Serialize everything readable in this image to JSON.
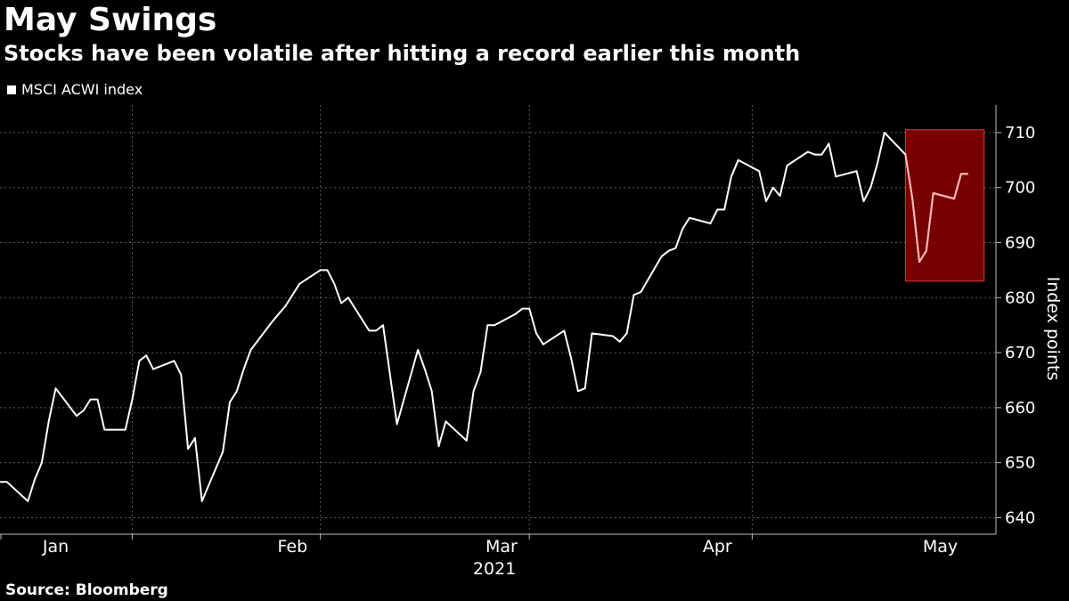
{
  "title": "May Swings",
  "subtitle": "Stocks have been volatile after hitting a record earlier this month",
  "source": "Source: Bloomberg",
  "chart_data": {
    "type": "line",
    "title": "May Swings",
    "subtitle": "Stocks have been volatile after hitting a record earlier this month",
    "ylabel": "Index points",
    "year_label": "2021",
    "ylim": [
      637,
      715
    ],
    "yticks": [
      640,
      650,
      660,
      670,
      680,
      690,
      700,
      710
    ],
    "month_labels": [
      "Jan",
      "Feb",
      "Mar",
      "Apr",
      "May"
    ],
    "grid": true,
    "legend_position": "top-left",
    "series": [
      {
        "name": "MSCI ACWI index",
        "color": "#ffffff",
        "x": [
          "2020-12-31",
          "2021-01-01",
          "2021-01-04",
          "2021-01-05",
          "2021-01-06",
          "2021-01-07",
          "2021-01-08",
          "2021-01-11",
          "2021-01-12",
          "2021-01-13",
          "2021-01-14",
          "2021-01-15",
          "2021-01-18",
          "2021-01-19",
          "2021-01-20",
          "2021-01-21",
          "2021-01-22",
          "2021-01-25",
          "2021-01-26",
          "2021-01-27",
          "2021-01-28",
          "2021-01-29",
          "2021-02-01",
          "2021-02-02",
          "2021-02-03",
          "2021-02-04",
          "2021-02-05",
          "2021-02-08",
          "2021-02-09",
          "2021-02-10",
          "2021-02-11",
          "2021-02-12",
          "2021-02-15",
          "2021-02-16",
          "2021-02-17",
          "2021-02-18",
          "2021-02-19",
          "2021-02-22",
          "2021-02-23",
          "2021-02-24",
          "2021-02-25",
          "2021-02-26",
          "2021-03-01",
          "2021-03-02",
          "2021-03-03",
          "2021-03-04",
          "2021-03-05",
          "2021-03-08",
          "2021-03-09",
          "2021-03-10",
          "2021-03-11",
          "2021-03-12",
          "2021-03-15",
          "2021-03-16",
          "2021-03-17",
          "2021-03-18",
          "2021-03-19",
          "2021-03-22",
          "2021-03-23",
          "2021-03-24",
          "2021-03-25",
          "2021-03-26",
          "2021-03-29",
          "2021-03-30",
          "2021-03-31",
          "2021-04-01",
          "2021-04-02",
          "2021-04-05",
          "2021-04-06",
          "2021-04-07",
          "2021-04-08",
          "2021-04-09",
          "2021-04-12",
          "2021-04-13",
          "2021-04-14",
          "2021-04-15",
          "2021-04-16",
          "2021-04-19",
          "2021-04-20",
          "2021-04-21",
          "2021-04-22",
          "2021-04-23",
          "2021-04-26",
          "2021-04-27",
          "2021-04-28",
          "2021-04-29",
          "2021-04-30",
          "2021-05-03",
          "2021-05-04",
          "2021-05-05",
          "2021-05-06",
          "2021-05-07",
          "2021-05-10",
          "2021-05-11",
          "2021-05-12",
          "2021-05-13",
          "2021-05-14",
          "2021-05-17",
          "2021-05-18",
          "2021-05-19"
        ],
        "values": [
          646.5,
          646.5,
          643.0,
          647.0,
          650.0,
          657.5,
          663.5,
          658.5,
          659.5,
          661.5,
          661.5,
          656.0,
          656.0,
          661.5,
          668.5,
          669.5,
          667.0,
          668.5,
          666.0,
          652.5,
          654.5,
          643.0,
          652.0,
          661.0,
          663.0,
          667.0,
          670.5,
          675.5,
          677.0,
          678.5,
          680.5,
          682.5,
          685.0,
          685.0,
          682.5,
          679.0,
          680.0,
          674.0,
          674.0,
          675.0,
          666.0,
          657.0,
          670.5,
          667.0,
          663.0,
          653.0,
          657.5,
          654.0,
          663.0,
          666.5,
          675.0,
          675.0,
          677.0,
          678.0,
          678.0,
          673.5,
          671.5,
          674.0,
          669.0,
          663.0,
          663.5,
          673.5,
          673.0,
          672.0,
          673.5,
          680.5,
          681.0,
          687.5,
          688.5,
          689.0,
          692.5,
          694.5,
          693.5,
          696.0,
          696.0,
          702.0,
          705.0,
          703.0,
          697.5,
          700.0,
          698.5,
          704.0,
          706.5,
          706.0,
          706.0,
          708.0,
          702.0,
          703.0,
          697.5,
          700.0,
          704.5,
          710.0,
          706.0,
          698.0,
          686.5,
          688.5,
          699.0,
          698.0,
          702.5,
          702.5
        ]
      }
    ],
    "highlight": {
      "x_start": "2021-05-10",
      "x_end": "2021-05-19",
      "y_start": 683.0,
      "y_end": 710.5,
      "color": "#8b0000"
    }
  }
}
